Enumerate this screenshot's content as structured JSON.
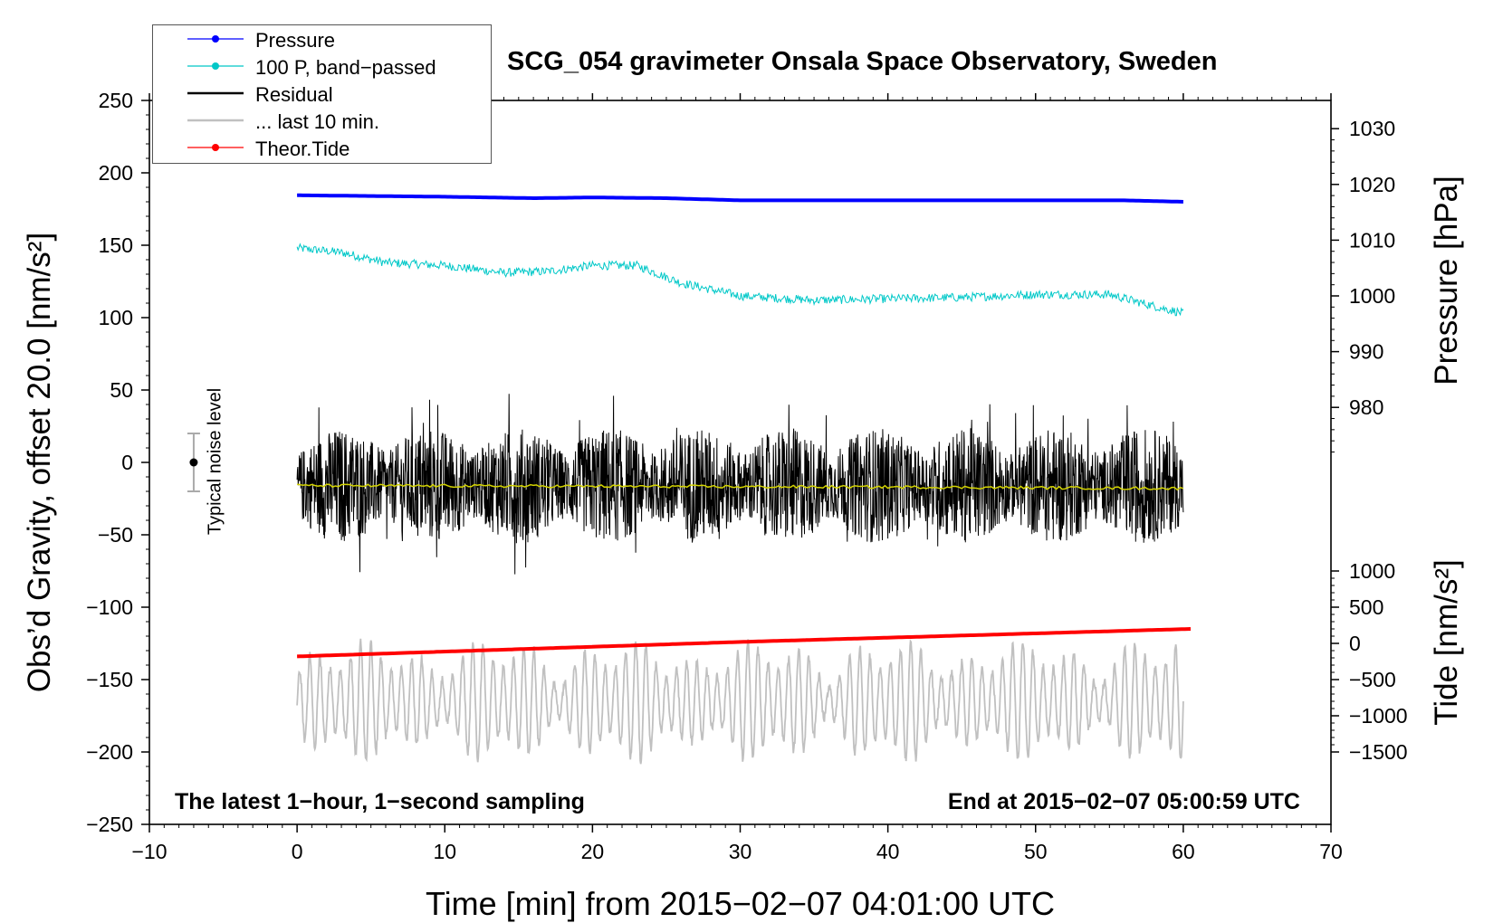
{
  "chart_data": {
    "type": "line",
    "title": "SCG_054 gravimeter Onsala Space Observatory, Sweden",
    "xlabel": "Time [min] from 2015−02−07 04:01:00 UTC",
    "ylabel_left": "Obs’d Gravity, offset 20.0 [nm/s²]",
    "ylabel_pressure": "Pressure [hPa]",
    "ylabel_tide": "Tide [nm/s²]",
    "xlim": [
      -10,
      70
    ],
    "ylim_left": [
      -250,
      250
    ],
    "x_ticks": [
      "−10",
      "0",
      "10",
      "20",
      "30",
      "40",
      "50",
      "60",
      "70"
    ],
    "x_tick_values": [
      -10,
      0,
      10,
      20,
      30,
      40,
      50,
      60,
      70
    ],
    "y_left_ticks": [
      "250",
      "200",
      "150",
      "100",
      "50",
      "0",
      "−50",
      "−100",
      "−150",
      "−200",
      "−250"
    ],
    "y_left_tick_values": [
      250,
      200,
      150,
      100,
      50,
      0,
      -50,
      -100,
      -150,
      -200,
      -250
    ],
    "pressure_axis": {
      "ticks": [
        "1030",
        "1020",
        "1010",
        "1000",
        "990",
        "980"
      ],
      "values": [
        1030,
        1020,
        1010,
        1000,
        990,
        980
      ],
      "left_equiv_at_1030": 230.5,
      "left_equiv_per_hpa": 3.85
    },
    "tide_axis": {
      "ticks": [
        "1000",
        "500",
        "0",
        "−500",
        "−1000",
        "−1500"
      ],
      "values": [
        1000,
        500,
        0,
        -500,
        -1000,
        -1500
      ],
      "left_equiv_at_0": -125,
      "left_equiv_per_unit": 0.05
    },
    "legend": [
      {
        "label": "Pressure",
        "color": "#0000ff",
        "marker": true
      },
      {
        "label": "100 P, band−passed",
        "color": "#00c8c8",
        "marker": true
      },
      {
        "label": "Residual",
        "color": "#000000",
        "marker": false
      },
      {
        "label": "... last 10 min.",
        "color": "#c0c0c0",
        "marker": false
      },
      {
        "label": "Theor.Tide",
        "color": "#ff0000",
        "marker": true
      }
    ],
    "series": [
      {
        "name": "Pressure",
        "color": "#0000ff",
        "x": [
          0,
          10,
          16,
          20,
          25,
          30,
          40,
          50,
          56,
          60
        ],
        "y": [
          184.5,
          183.5,
          182.5,
          183,
          182.5,
          181,
          181,
          181,
          181,
          180
        ]
      },
      {
        "name": "100 P, band−passed",
        "color": "#00c8c8",
        "x": [
          0,
          3,
          6,
          10,
          14,
          17,
          20,
          23,
          26,
          30,
          35,
          40,
          45,
          50,
          55,
          58,
          60
        ],
        "y": [
          148,
          145,
          138,
          136,
          131,
          132,
          136,
          136,
          124,
          115,
          112,
          113,
          114,
          116,
          116,
          108,
          103
        ]
      },
      {
        "name": "Residual",
        "color": "#000000",
        "type": "noise",
        "x_range": [
          0,
          60
        ],
        "center": -16,
        "amplitude": 40
      },
      {
        "name": "Mean",
        "color": "#d4d400",
        "x": [
          0,
          20,
          40,
          60
        ],
        "y": [
          -16,
          -16.5,
          -17,
          -18
        ]
      },
      {
        "name": "... last 10 min.",
        "color": "#c0c0c0",
        "type": "oscillation",
        "x_range": [
          0,
          60
        ],
        "center": -165,
        "amplitude": 30
      },
      {
        "name": "Theor.Tide",
        "color": "#ff0000",
        "x": [
          0,
          30,
          60.5
        ],
        "y": [
          -134,
          -124,
          -115
        ]
      }
    ],
    "noise_level": {
      "label": "Typical noise level",
      "x": -7,
      "center": 0,
      "plus_minus": 20
    },
    "annotation_left": "The latest 1−hour, 1−second sampling",
    "annotation_right": "End at 2015−02−07 05:00:59 UTC"
  }
}
